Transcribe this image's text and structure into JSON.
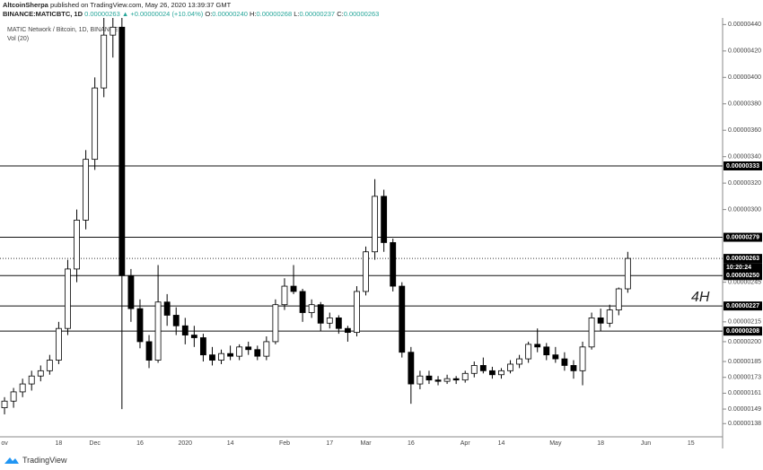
{
  "header": {
    "author": "AltcoinSherpa",
    "published": "published on TradingView.com, May 26, 2020 13:39:37 GMT",
    "symbol": "BINANCE:MATICBTC, 1D",
    "price": "0.00000263",
    "change": "▲ +0.00000024 (+10.04%)",
    "ohlc": [
      {
        "key": "O:",
        "value": "0.00000240"
      },
      {
        "key": "H:",
        "value": "0.00000268"
      },
      {
        "key": "L:",
        "value": "0.00000237"
      },
      {
        "key": "C:",
        "value": "0.00000263"
      }
    ]
  },
  "footer": "TradingView",
  "chart_data": {
    "type": "candlestick",
    "legend_title": "MATIC Network / Bitcoin, 1D, BINANCE",
    "volume_label": "Vol (20)",
    "annotation": "4H",
    "up_color": "#ffffff",
    "down_color": "#000000",
    "wick_color": "#000000",
    "grid": false,
    "categories": [
      "ov",
      null,
      null,
      null,
      null,
      null,
      "18",
      null,
      null,
      null,
      "Dec",
      null,
      null,
      null,
      null,
      "16",
      null,
      null,
      null,
      null,
      "2020",
      null,
      null,
      null,
      null,
      "14",
      null,
      null,
      null,
      null,
      null,
      "Feb",
      null,
      null,
      null,
      null,
      "17",
      null,
      null,
      null,
      "Mar",
      null,
      null,
      null,
      null,
      "16",
      null,
      null,
      null,
      null,
      null,
      "Apr",
      null,
      null,
      null,
      "14",
      null,
      null,
      null,
      null,
      null,
      "May",
      null,
      null,
      null,
      null,
      "18",
      null,
      null,
      null,
      null,
      "Jun",
      null,
      null,
      null,
      null,
      "15",
      null,
      null,
      null
    ],
    "open": [
      1.5e-06,
      1.55e-06,
      1.62e-06,
      1.68e-06,
      1.74e-06,
      1.78e-06,
      1.86e-06,
      2.1e-06,
      2.55e-06,
      2.92e-06,
      3.38e-06,
      3.92e-06,
      4.32e-06,
      4.38e-06,
      2.5e-06,
      2.25e-06,
      2e-06,
      1.86e-06,
      2.3e-06,
      2.2e-06,
      2.12e-06,
      2.05e-06,
      2.03e-06,
      1.9e-06,
      1.86e-06,
      1.91e-06,
      1.89e-06,
      1.96e-06,
      1.94e-06,
      1.89e-06,
      2e-06,
      2.28e-06,
      2.42e-06,
      2.38e-06,
      2.22e-06,
      2.28e-06,
      2.14e-06,
      2.18e-06,
      2.1e-06,
      2.07e-06,
      2.38e-06,
      2.68e-06,
      3.1e-06,
      2.75e-06,
      2.42e-06,
      1.92e-06,
      1.68e-06,
      1.74e-06,
      1.71e-06,
      1.7e-06,
      1.72e-06,
      1.71e-06,
      1.76e-06,
      1.82e-06,
      1.78e-06,
      1.75e-06,
      1.78e-06,
      1.83e-06,
      1.87e-06,
      1.98e-06,
      1.96e-06,
      1.9e-06,
      1.87e-06,
      1.82e-06,
      1.78e-06,
      1.96e-06,
      2.18e-06,
      2.14e-06,
      2.24e-06,
      2.4e-06,
      null,
      null,
      null,
      null,
      null,
      null,
      null,
      null,
      null,
      null
    ],
    "high": [
      1.58e-06,
      1.65e-06,
      1.72e-06,
      1.78e-06,
      1.82e-06,
      1.9e-06,
      2.15e-06,
      2.62e-06,
      3e-06,
      3.45e-06,
      4e-06,
      4.45e-06,
      4.45e-06,
      4.45e-06,
      2.55e-06,
      2.32e-06,
      2.05e-06,
      2.58e-06,
      2.36e-06,
      2.26e-06,
      2.18e-06,
      2.12e-06,
      2.06e-06,
      1.96e-06,
      1.94e-06,
      1.97e-06,
      1.98e-06,
      2e-06,
      1.97e-06,
      2.04e-06,
      2.32e-06,
      2.48e-06,
      2.58e-06,
      2.4e-06,
      2.32e-06,
      2.3e-06,
      2.22e-06,
      2.2e-06,
      2.12e-06,
      2.42e-06,
      2.72e-06,
      3.23e-06,
      3.15e-06,
      2.78e-06,
      2.45e-06,
      1.96e-06,
      1.78e-06,
      1.78e-06,
      1.74e-06,
      1.75e-06,
      1.74e-06,
      1.78e-06,
      1.85e-06,
      1.88e-06,
      1.81e-06,
      1.8e-06,
      1.86e-06,
      1.9e-06,
      2e-06,
      2.1e-06,
      1.99e-06,
      1.96e-06,
      1.92e-06,
      1.86e-06,
      2e-06,
      2.22e-06,
      2.25e-06,
      2.28e-06,
      2.41e-06,
      2.68e-06,
      null,
      null,
      null,
      null,
      null,
      null,
      null,
      null,
      null,
      null
    ],
    "low": [
      1.45e-06,
      1.5e-06,
      1.58e-06,
      1.63e-06,
      1.7e-06,
      1.75e-06,
      1.83e-06,
      2.05e-06,
      2.45e-06,
      2.85e-06,
      3.3e-06,
      3.85e-06,
      4.15e-06,
      1.49e-06,
      2.15e-06,
      1.95e-06,
      1.8e-06,
      1.84e-06,
      2.12e-06,
      2.05e-06,
      1.98e-06,
      1.96e-06,
      1.85e-06,
      1.82e-06,
      1.83e-06,
      1.86e-06,
      1.86e-06,
      1.9e-06,
      1.86e-06,
      1.86e-06,
      1.98e-06,
      2.24e-06,
      2.36e-06,
      2.15e-06,
      2.18e-06,
      2.08e-06,
      2.1e-06,
      2.06e-06,
      2e-06,
      2.04e-06,
      2.35e-06,
      2.62e-06,
      2.68e-06,
      2.38e-06,
      1.88e-06,
      1.53e-06,
      1.64e-06,
      1.68e-06,
      1.67e-06,
      1.68e-06,
      1.68e-06,
      1.69e-06,
      1.73e-06,
      1.76e-06,
      1.72e-06,
      1.72e-06,
      1.76e-06,
      1.8e-06,
      1.84e-06,
      1.92e-06,
      1.86e-06,
      1.84e-06,
      1.78e-06,
      1.72e-06,
      1.67e-06,
      1.94e-06,
      2.08e-06,
      2.11e-06,
      2.2e-06,
      2.37e-06,
      null,
      null,
      null,
      null,
      null,
      null,
      null,
      null,
      null,
      null
    ],
    "close": [
      1.55e-06,
      1.62e-06,
      1.68e-06,
      1.74e-06,
      1.78e-06,
      1.86e-06,
      2.1e-06,
      2.55e-06,
      2.92e-06,
      3.38e-06,
      3.92e-06,
      4.32e-06,
      4.38e-06,
      2.5e-06,
      2.25e-06,
      2e-06,
      1.86e-06,
      2.3e-06,
      2.2e-06,
      2.12e-06,
      2.05e-06,
      2.03e-06,
      1.9e-06,
      1.86e-06,
      1.91e-06,
      1.89e-06,
      1.96e-06,
      1.94e-06,
      1.89e-06,
      2e-06,
      2.28e-06,
      2.42e-06,
      2.38e-06,
      2.22e-06,
      2.28e-06,
      2.14e-06,
      2.18e-06,
      2.1e-06,
      2.07e-06,
      2.38e-06,
      2.68e-06,
      3.1e-06,
      2.75e-06,
      2.42e-06,
      1.92e-06,
      1.68e-06,
      1.74e-06,
      1.71e-06,
      1.7e-06,
      1.72e-06,
      1.71e-06,
      1.76e-06,
      1.82e-06,
      1.78e-06,
      1.75e-06,
      1.78e-06,
      1.83e-06,
      1.87e-06,
      1.98e-06,
      1.96e-06,
      1.9e-06,
      1.87e-06,
      1.82e-06,
      1.78e-06,
      1.96e-06,
      2.18e-06,
      2.14e-06,
      2.24e-06,
      2.4e-06,
      2.63e-06,
      null,
      null,
      null,
      null,
      null,
      null,
      null,
      null,
      null,
      null
    ],
    "ylim": [
      1.28e-06,
      4.45e-06
    ],
    "yticks": [
      {
        "value": 4.4e-06,
        "label": "0.00000440"
      },
      {
        "value": 4.2e-06,
        "label": "0.00000420"
      },
      {
        "value": 4e-06,
        "label": "0.00000400"
      },
      {
        "value": 3.8e-06,
        "label": "0.00000380"
      },
      {
        "value": 3.6e-06,
        "label": "0.00000360"
      },
      {
        "value": 3.4e-06,
        "label": "0.00000340"
      },
      {
        "value": 3.2e-06,
        "label": "0.00000320"
      },
      {
        "value": 3e-06,
        "label": "0.00000300"
      },
      {
        "value": 2.45e-06,
        "label": "0.00000245"
      },
      {
        "value": 2.15e-06,
        "label": "0.00000215"
      },
      {
        "value": 2e-06,
        "label": "0.00000200"
      },
      {
        "value": 1.85e-06,
        "label": "0.00000185"
      },
      {
        "value": 1.73e-06,
        "label": "0.00000173"
      },
      {
        "value": 1.61e-06,
        "label": "0.00000161"
      },
      {
        "value": 1.49e-06,
        "label": "0.00000149"
      },
      {
        "value": 1.38e-06,
        "label": "0.00000138"
      }
    ],
    "hlines": [
      {
        "value": 3.33e-06,
        "label": "0.00000333"
      },
      {
        "value": 2.79e-06,
        "label": "0.00000279"
      },
      {
        "value": 2.5e-06,
        "label": "0.00000250"
      },
      {
        "value": 2.27e-06,
        "label": "0.00000227"
      },
      {
        "value": 2.08e-06,
        "label": "0.00000208"
      }
    ],
    "last_price": {
      "value": 2.63e-06,
      "label": "0.00000263",
      "countdown": "10:20:24"
    }
  }
}
